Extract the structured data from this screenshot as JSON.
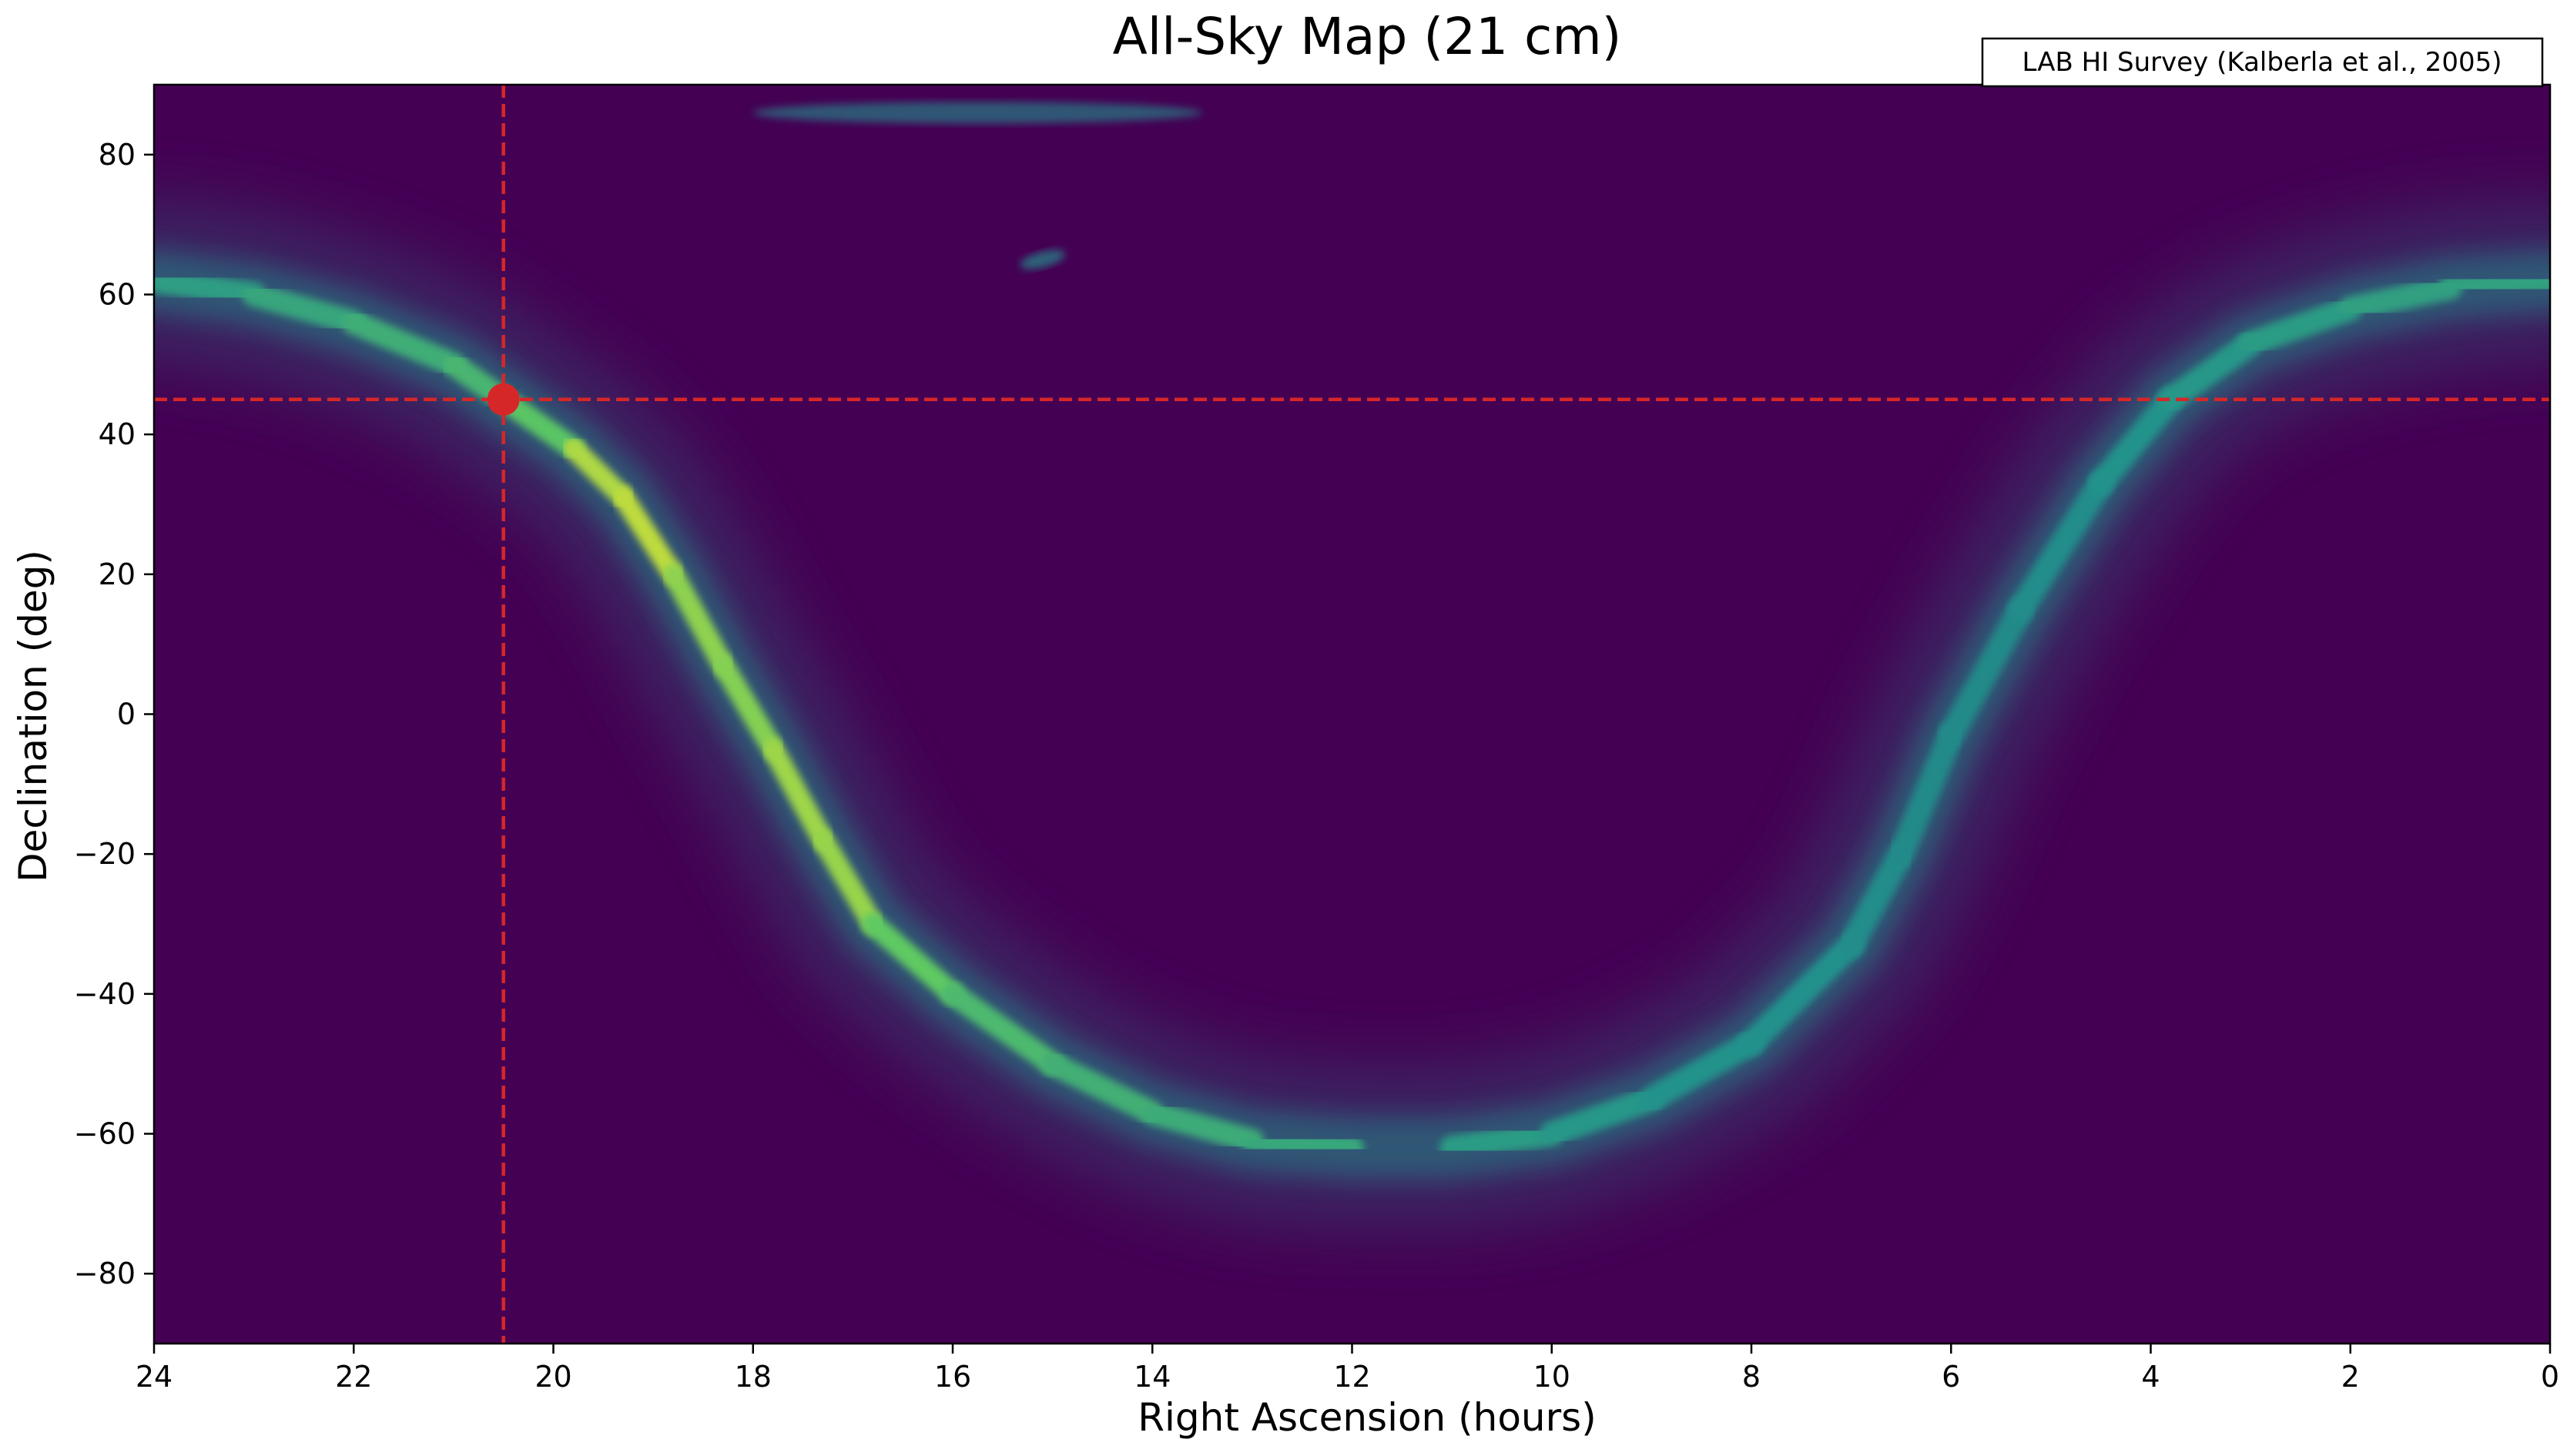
{
  "chart_data": {
    "type": "heatmap",
    "title": "All-Sky Map (21 cm)",
    "annotation": "LAB HI Survey (Kalberla et al., 2005)",
    "xlabel": "Right Ascension (hours)",
    "ylabel": "Declination (deg)",
    "xlim": [
      24,
      0
    ],
    "ylim": [
      -90,
      90
    ],
    "x_inverted": true,
    "x_ticks": [
      24,
      22,
      20,
      18,
      16,
      14,
      12,
      10,
      8,
      6,
      4,
      2,
      0
    ],
    "x_tick_labels": [
      "24",
      "22",
      "20",
      "18",
      "16",
      "14",
      "12",
      "10",
      "8",
      "6",
      "4",
      "2",
      "0"
    ],
    "y_ticks": [
      80,
      60,
      40,
      20,
      0,
      -20,
      -40,
      -60,
      -80
    ],
    "y_tick_labels": [
      "80",
      "60",
      "40",
      "20",
      "0",
      "−20",
      "−40",
      "−60",
      "−80"
    ],
    "grid": false,
    "colormap": "viridis",
    "colors": {
      "background_low": "#440154",
      "band_mid": "#21918c",
      "band_high": "#5ec962",
      "band_peak": "#fde725",
      "marker": "#d62728"
    },
    "galactic_plane_ridge": [
      {
        "ra": 24.0,
        "dec": 62.0,
        "intensity": 0.45
      },
      {
        "ra": 23.0,
        "dec": 60.0,
        "intensity": 0.5
      },
      {
        "ra": 22.0,
        "dec": 56.0,
        "intensity": 0.55
      },
      {
        "ra": 21.0,
        "dec": 50.0,
        "intensity": 0.6
      },
      {
        "ra": 20.5,
        "dec": 45.0,
        "intensity": 0.65
      },
      {
        "ra": 19.8,
        "dec": 38.0,
        "intensity": 0.8
      },
      {
        "ra": 19.3,
        "dec": 31.0,
        "intensity": 0.95
      },
      {
        "ra": 18.8,
        "dec": 20.0,
        "intensity": 0.85
      },
      {
        "ra": 18.3,
        "dec": 7.0,
        "intensity": 0.8
      },
      {
        "ra": 17.8,
        "dec": -5.0,
        "intensity": 0.82
      },
      {
        "ra": 17.3,
        "dec": -18.0,
        "intensity": 0.88
      },
      {
        "ra": 16.8,
        "dec": -30.0,
        "intensity": 0.8
      },
      {
        "ra": 16.0,
        "dec": -40.0,
        "intensity": 0.7
      },
      {
        "ra": 15.0,
        "dec": -50.0,
        "intensity": 0.6
      },
      {
        "ra": 14.0,
        "dec": -57.0,
        "intensity": 0.58
      },
      {
        "ra": 13.0,
        "dec": -61.0,
        "intensity": 0.55
      },
      {
        "ra": 12.0,
        "dec": -62.0,
        "intensity": 0.52
      },
      {
        "ra": 11.0,
        "dec": -62.0,
        "intensity": 0.48
      },
      {
        "ra": 10.0,
        "dec": -60.0,
        "intensity": 0.45
      },
      {
        "ra": 9.0,
        "dec": -55.0,
        "intensity": 0.42
      },
      {
        "ra": 8.0,
        "dec": -47.0,
        "intensity": 0.4
      },
      {
        "ra": 7.0,
        "dec": -33.0,
        "intensity": 0.4
      },
      {
        "ra": 6.5,
        "dec": -20.0,
        "intensity": 0.38
      },
      {
        "ra": 6.0,
        "dec": -3.0,
        "intensity": 0.38
      },
      {
        "ra": 5.3,
        "dec": 15.0,
        "intensity": 0.38
      },
      {
        "ra": 4.5,
        "dec": 33.0,
        "intensity": 0.4
      },
      {
        "ra": 3.8,
        "dec": 45.0,
        "intensity": 0.42
      },
      {
        "ra": 3.0,
        "dec": 53.0,
        "intensity": 0.45
      },
      {
        "ra": 2.0,
        "dec": 58.0,
        "intensity": 0.48
      },
      {
        "ra": 1.0,
        "dec": 61.0,
        "intensity": 0.5
      },
      {
        "ra": 0.0,
        "dec": 62.0,
        "intensity": 0.5
      }
    ],
    "secondary_features": [
      {
        "name": "north-polar-streak",
        "ra_from": 18.0,
        "ra_to": 13.5,
        "dec": 86.0,
        "intensity": 0.3
      },
      {
        "name": "compact-cloud",
        "ra": 15.1,
        "dec": 65.0,
        "intensity": 0.3
      }
    ],
    "marker": {
      "ra": 20.5,
      "dec": 45.0
    },
    "reference_lines": {
      "vertical_ra": 20.5,
      "horizontal_dec": 45.0,
      "style": "dashed"
    }
  }
}
